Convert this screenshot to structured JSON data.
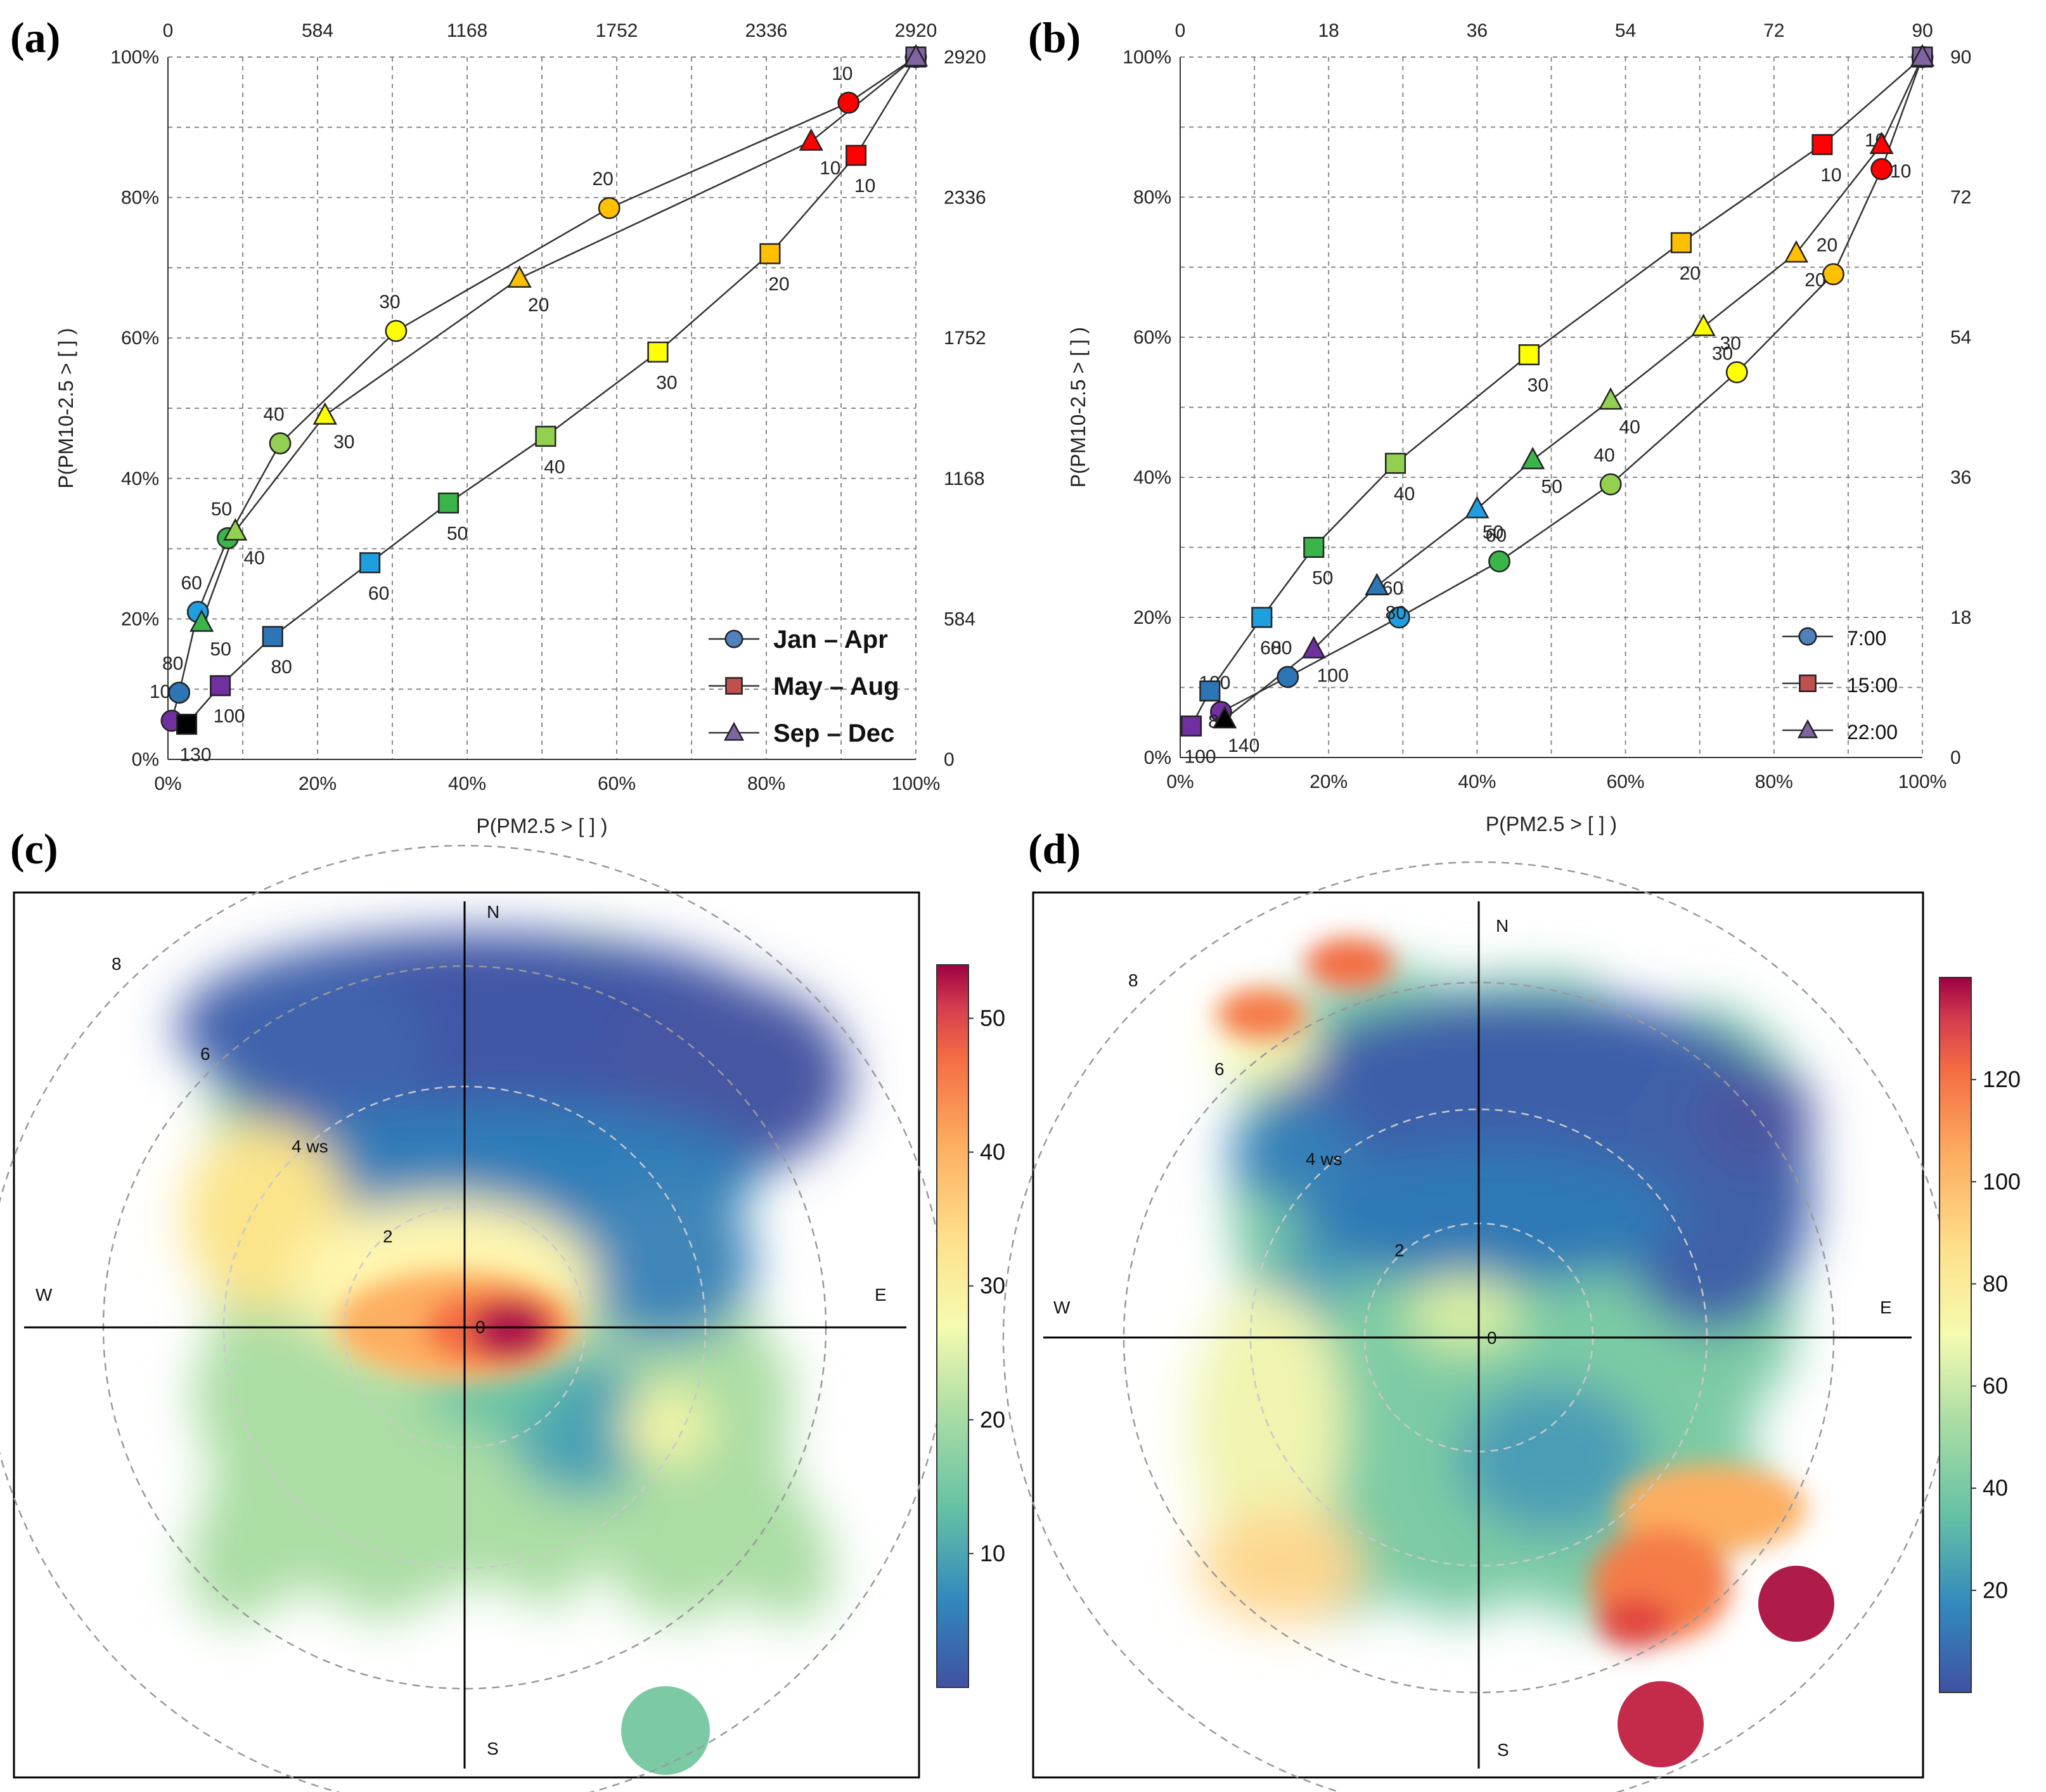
{
  "chart_data": [
    {
      "panel": "(a)",
      "type": "line",
      "xlabel": "P(PM2.5 > [ ] )",
      "ylabel": "P(PM10-2.5 > [ ] )",
      "xlim": [
        0,
        100
      ],
      "ylim": [
        0,
        100
      ],
      "xticks": [
        "0%",
        "20%",
        "40%",
        "60%",
        "80%",
        "100%"
      ],
      "yticks": [
        "0%",
        "20%",
        "40%",
        "60%",
        "80%",
        "100%"
      ],
      "top_ticks": [
        "0",
        "584",
        "1168",
        "1752",
        "2336",
        "2920"
      ],
      "right_ticks": [
        "0",
        "584",
        "1168",
        "1752",
        "2336",
        "2920"
      ],
      "legend": [
        {
          "label": "Jan –  Apr",
          "marker": "circle"
        },
        {
          "label": "May – Aug",
          "marker": "square"
        },
        {
          "label": "Sep –  Dec",
          "marker": "triangle"
        }
      ],
      "series": [
        {
          "name": "Jan – Apr",
          "marker": "circle",
          "points": [
            {
              "x": 0.5,
              "y": 5.5,
              "label": "100",
              "color": "#7030a0"
            },
            {
              "x": 1.5,
              "y": 9.5,
              "label": "80",
              "color": "#2e75b6"
            },
            {
              "x": 4,
              "y": 21,
              "label": "60",
              "color": "#1f9fe0"
            },
            {
              "x": 8,
              "y": 31.5,
              "label": "50",
              "color": "#3ab54a"
            },
            {
              "x": 15,
              "y": 45,
              "label": "40",
              "color": "#92d050"
            },
            {
              "x": 30.5,
              "y": 61,
              "label": "30",
              "color": "#ffff00"
            },
            {
              "x": 59,
              "y": 78.5,
              "label": "20",
              "color": "#ffc000"
            },
            {
              "x": 91,
              "y": 93.5,
              "label": "10",
              "color": "#ff0000"
            },
            {
              "x": 100,
              "y": 100,
              "label": "",
              "color": "#8064a2"
            }
          ]
        },
        {
          "name": "May – Aug",
          "marker": "square",
          "points": [
            {
              "x": 2.5,
              "y": 5,
              "label": "130",
              "color": "#000000"
            },
            {
              "x": 7,
              "y": 10.5,
              "label": "100",
              "color": "#7030a0"
            },
            {
              "x": 14,
              "y": 17.5,
              "label": "80",
              "color": "#2e75b6"
            },
            {
              "x": 27,
              "y": 28,
              "label": "60",
              "color": "#1f9fe0"
            },
            {
              "x": 37.5,
              "y": 36.5,
              "label": "50",
              "color": "#3ab54a"
            },
            {
              "x": 50.5,
              "y": 46,
              "label": "40",
              "color": "#92d050"
            },
            {
              "x": 65.5,
              "y": 58,
              "label": "30",
              "color": "#ffff00"
            },
            {
              "x": 80.5,
              "y": 72,
              "label": "20",
              "color": "#ffc000"
            },
            {
              "x": 92,
              "y": 86,
              "label": "10",
              "color": "#ff0000"
            },
            {
              "x": 100,
              "y": 100,
              "label": "",
              "color": "#8064a2"
            }
          ]
        },
        {
          "name": "Sep – Dec",
          "marker": "triangle",
          "points": [
            {
              "x": 4.5,
              "y": 19.5,
              "label": "50",
              "color": "#3ab54a"
            },
            {
              "x": 9,
              "y": 32.5,
              "label": "40",
              "color": "#92d050"
            },
            {
              "x": 21,
              "y": 49,
              "label": "30",
              "color": "#ffff00"
            },
            {
              "x": 47,
              "y": 68.5,
              "label": "20",
              "color": "#ffc000"
            },
            {
              "x": 86,
              "y": 88,
              "label": "10",
              "color": "#ff0000"
            },
            {
              "x": 100,
              "y": 100,
              "label": "",
              "color": "#8064a2"
            }
          ]
        }
      ]
    },
    {
      "panel": "(b)",
      "type": "line",
      "xlabel": "P(PM2.5 > [ ] )",
      "ylabel": "P(PM10-2.5 > [ ] )",
      "xlim": [
        0,
        100
      ],
      "ylim": [
        0,
        100
      ],
      "xticks": [
        "0%",
        "20%",
        "40%",
        "60%",
        "80%",
        "100%"
      ],
      "yticks": [
        "0%",
        "20%",
        "40%",
        "60%",
        "80%",
        "100%"
      ],
      "top_ticks": [
        "0",
        "18",
        "36",
        "54",
        "72",
        "90"
      ],
      "right_ticks": [
        "0",
        "18",
        "36",
        "54",
        "72",
        "90"
      ],
      "legend": [
        {
          "label": "7:00",
          "marker": "circle"
        },
        {
          "label": "15:00",
          "marker": "square"
        },
        {
          "label": "22:00",
          "marker": "triangle"
        }
      ],
      "series": [
        {
          "name": "7:00",
          "marker": "circle",
          "points": [
            {
              "x": 5.5,
              "y": 6.5,
              "label": "100",
              "color": "#7030a0"
            },
            {
              "x": 14.5,
              "y": 11.5,
              "label": "80",
              "color": "#2e75b6"
            },
            {
              "x": 29.5,
              "y": 20,
              "label": "60",
              "color": "#1f9fe0"
            },
            {
              "x": 43,
              "y": 28,
              "label": "50",
              "color": "#3ab54a"
            },
            {
              "x": 58,
              "y": 39,
              "label": "40",
              "color": "#92d050"
            },
            {
              "x": 75,
              "y": 55,
              "label": "30",
              "color": "#ffff00"
            },
            {
              "x": 88,
              "y": 69,
              "label": "20",
              "color": "#ffc000"
            },
            {
              "x": 94.5,
              "y": 84,
              "label": "10",
              "color": "#ff0000"
            },
            {
              "x": 100,
              "y": 100,
              "label": "",
              "color": "#8064a2"
            }
          ]
        },
        {
          "name": "15:00",
          "marker": "square",
          "points": [
            {
              "x": 1.5,
              "y": 4.5,
              "label": "100",
              "color": "#7030a0"
            },
            {
              "x": 4,
              "y": 9.5,
              "label": "80",
              "color": "#2e75b6"
            },
            {
              "x": 11,
              "y": 20,
              "label": "60",
              "color": "#1f9fe0"
            },
            {
              "x": 18,
              "y": 30,
              "label": "50",
              "color": "#3ab54a"
            },
            {
              "x": 29,
              "y": 42,
              "label": "40",
              "color": "#92d050"
            },
            {
              "x": 47,
              "y": 57.5,
              "label": "30",
              "color": "#ffff00"
            },
            {
              "x": 67.5,
              "y": 73.5,
              "label": "20",
              "color": "#ffc000"
            },
            {
              "x": 86.5,
              "y": 87.5,
              "label": "10",
              "color": "#ff0000"
            },
            {
              "x": 100,
              "y": 100,
              "label": "",
              "color": "#8064a2"
            }
          ]
        },
        {
          "name": "22:00",
          "marker": "triangle",
          "points": [
            {
              "x": 6,
              "y": 5.5,
              "label": "140",
              "color": "#000000"
            },
            {
              "x": 18,
              "y": 15.5,
              "label": "100",
              "color": "#7030a0"
            },
            {
              "x": 26.5,
              "y": 24.5,
              "label": "80",
              "color": "#2e75b6"
            },
            {
              "x": 40,
              "y": 35.5,
              "label": "60",
              "color": "#1f9fe0"
            },
            {
              "x": 47.5,
              "y": 42.5,
              "label": "50",
              "color": "#3ab54a"
            },
            {
              "x": 58,
              "y": 51,
              "label": "40",
              "color": "#92d050"
            },
            {
              "x": 70.5,
              "y": 61.5,
              "label": "30",
              "color": "#ffff00"
            },
            {
              "x": 83,
              "y": 72,
              "label": "20",
              "color": "#ffc000"
            },
            {
              "x": 94.5,
              "y": 87.5,
              "label": "10",
              "color": "#ff0000"
            },
            {
              "x": 100,
              "y": 100,
              "label": "",
              "color": "#8064a2"
            }
          ]
        }
      ]
    },
    {
      "panel": "(c)",
      "type": "heatmap",
      "subtype": "polar",
      "radial_labels": [
        "2",
        "4 ws",
        "6",
        "8"
      ],
      "compass": [
        "N",
        "E",
        "S",
        "W"
      ],
      "center_label": "0",
      "colorbar": {
        "min": 0,
        "max": 54,
        "ticks": [
          "10",
          "20",
          "30",
          "40",
          "50"
        ]
      },
      "hotspots": [
        {
          "direction_deg": 95,
          "speed": 0.5,
          "value": 54
        },
        {
          "direction_deg": 290,
          "speed": 1.5,
          "value": 35
        },
        {
          "direction_deg": 300,
          "speed": 5,
          "value": 32
        },
        {
          "direction_deg": 0,
          "speed": 6.5,
          "value": 2
        }
      ]
    },
    {
      "panel": "(d)",
      "type": "heatmap",
      "subtype": "polar",
      "radial_labels": [
        "2",
        "4 ws",
        "6",
        "8"
      ],
      "compass": [
        "N",
        "E",
        "S",
        "W"
      ],
      "center_label": "0",
      "colorbar": {
        "min": 0,
        "max": 140,
        "ticks": [
          "20",
          "40",
          "60",
          "80",
          "100",
          "120"
        ]
      },
      "hotspots": [
        {
          "direction_deg": 140,
          "speed": 6.5,
          "value": 140
        },
        {
          "direction_deg": 160,
          "speed": 8,
          "value": 130
        },
        {
          "direction_deg": 315,
          "speed": 7.5,
          "value": 100
        },
        {
          "direction_deg": 225,
          "speed": 6,
          "value": 80
        },
        {
          "direction_deg": 30,
          "speed": 5,
          "value": 10
        }
      ]
    }
  ],
  "panels": {
    "a": {
      "label": "(a)"
    },
    "b": {
      "label": "(b)"
    },
    "c": {
      "label": "(c)"
    },
    "d": {
      "label": "(d)"
    }
  },
  "colors": {
    "line": "#333333",
    "grid": "#8a8a8a",
    "spectral_low": "#3f4fa2",
    "spectral_high": "#9e0142"
  }
}
